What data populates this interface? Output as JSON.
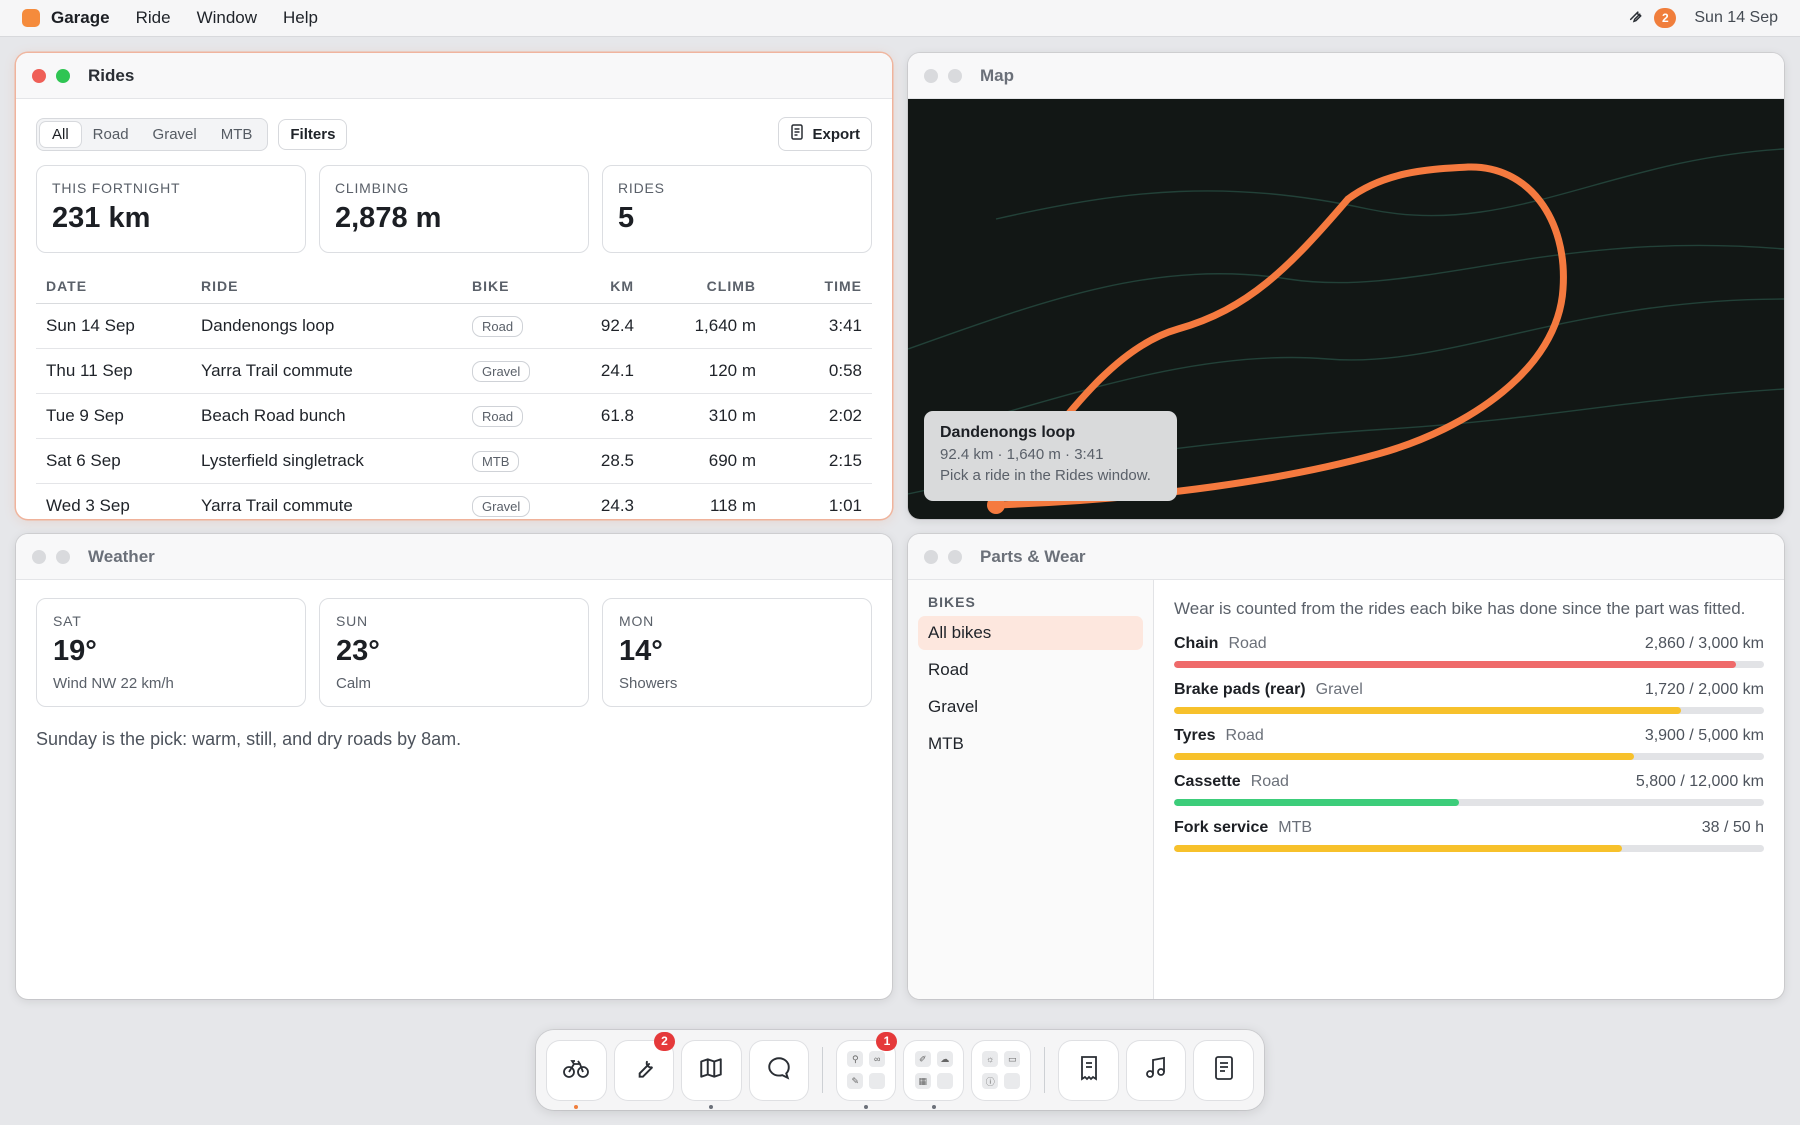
{
  "menubar": {
    "app_name": "Garage",
    "menus": [
      "Ride",
      "Window",
      "Help"
    ],
    "badge": "2",
    "date": "Sun 14 Sep",
    "accent": "#f07e3c"
  },
  "rides": {
    "title": "Rides",
    "segments": [
      "All",
      "Road",
      "Gravel",
      "MTB"
    ],
    "selected_segment": "All",
    "filters_label": "Filters",
    "export_label": "Export",
    "stats": [
      {
        "label": "THIS FORTNIGHT",
        "value": "231 km"
      },
      {
        "label": "CLIMBING",
        "value": "2,878 m"
      },
      {
        "label": "RIDES",
        "value": "5"
      }
    ],
    "columns": [
      "DATE",
      "RIDE",
      "BIKE",
      "KM",
      "CLIMB",
      "TIME"
    ],
    "rows": [
      {
        "date": "Sun 14 Sep",
        "ride": "Dandenongs loop",
        "bike": "Road",
        "km": "92.4",
        "climb": "1,640 m",
        "time": "3:41"
      },
      {
        "date": "Thu 11 Sep",
        "ride": "Yarra Trail commute",
        "bike": "Gravel",
        "km": "24.1",
        "climb": "120 m",
        "time": "0:58"
      },
      {
        "date": "Tue 9 Sep",
        "ride": "Beach Road bunch",
        "bike": "Road",
        "km": "61.8",
        "climb": "310 m",
        "time": "2:02"
      },
      {
        "date": "Sat 6 Sep",
        "ride": "Lysterfield singletrack",
        "bike": "MTB",
        "km": "28.5",
        "climb": "690 m",
        "time": "2:15"
      },
      {
        "date": "Wed 3 Sep",
        "ride": "Yarra Trail commute",
        "bike": "Gravel",
        "km": "24.3",
        "climb": "118 m",
        "time": "1:01"
      }
    ]
  },
  "map": {
    "title": "Map",
    "card_title": "Dandenongs loop",
    "card_stats": "92.4 km · 1,640 m · 3:41",
    "card_hint": "Pick a ride in the Rides window.",
    "route_color": "#f57a3f"
  },
  "weather": {
    "title": "Weather",
    "days": [
      {
        "day": "SAT",
        "temp": "19°",
        "desc": "Wind NW 22 km/h"
      },
      {
        "day": "SUN",
        "temp": "23°",
        "desc": "Calm"
      },
      {
        "day": "MON",
        "temp": "14°",
        "desc": "Showers"
      }
    ],
    "note": "Sunday is the pick: warm, still, and dry roads by 8am."
  },
  "parts": {
    "title": "Parts & Wear",
    "bikes_heading": "BIKES",
    "bikes": [
      "All bikes",
      "Road",
      "Gravel",
      "MTB"
    ],
    "selected_bike": "All bikes",
    "intro": "Wear is counted from the rides each bike has done since the part was fitted.",
    "items": [
      {
        "name": "Chain",
        "bike": "Road",
        "usage": "2,860 / 3,000 km",
        "fraction": 0.953,
        "color": "#ef6a6a"
      },
      {
        "name": "Brake pads (rear)",
        "bike": "Gravel",
        "usage": "1,720 / 2,000 km",
        "fraction": 0.86,
        "color": "#f7c12b"
      },
      {
        "name": "Tyres",
        "bike": "Road",
        "usage": "3,900 / 5,000 km",
        "fraction": 0.78,
        "color": "#f7c12b"
      },
      {
        "name": "Cassette",
        "bike": "Road",
        "usage": "5,800 / 12,000 km",
        "fraction": 0.483,
        "color": "#3ccd7a"
      },
      {
        "name": "Fork service",
        "bike": "MTB",
        "usage": "38 / 50 h",
        "fraction": 0.76,
        "color": "#f7c12b"
      }
    ]
  },
  "dock": {
    "items": [
      {
        "icon": "bicycle-icon",
        "badge": "",
        "running": "accent"
      },
      {
        "icon": "wrench-icon",
        "badge": "2",
        "running": ""
      },
      {
        "icon": "map-icon",
        "badge": "",
        "running": "dot"
      },
      {
        "icon": "chat-icon",
        "badge": "",
        "running": ""
      },
      {
        "icon": "rides-folder-icon",
        "badge": "1",
        "running": "dot"
      },
      {
        "icon": "tools-folder-icon",
        "badge": "",
        "running": "dot"
      },
      {
        "icon": "system-folder-icon",
        "badge": "",
        "running": ""
      },
      {
        "icon": "receipt-icon",
        "badge": "",
        "running": ""
      },
      {
        "icon": "music-icon",
        "badge": "",
        "running": ""
      },
      {
        "icon": "notes-icon",
        "badge": "",
        "running": ""
      }
    ]
  }
}
